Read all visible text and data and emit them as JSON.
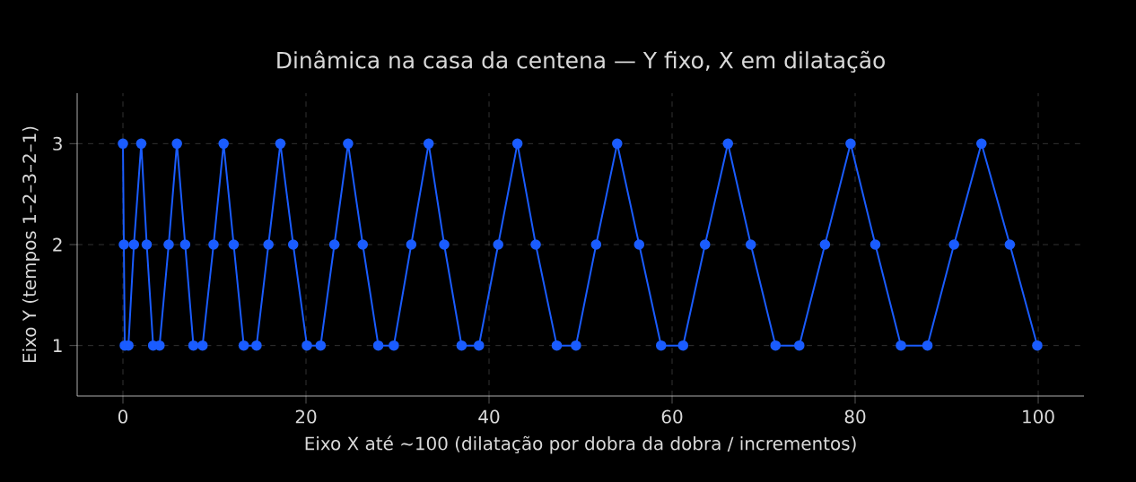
{
  "chart_data": {
    "type": "line",
    "title": "Dinâmica na casa da centena — Y fixo, X em dilatação",
    "xlabel": "Eixo X até ~100 (dilatação por dobra da dobra / incrementos)",
    "ylabel": "Eixo Y (tempos 1–2–3–2–1)",
    "series": [
      {
        "color": "#1a5cff",
        "x": [
          0,
          0.1,
          0.2,
          0.6,
          1.2,
          2,
          2.6,
          3.3,
          4,
          5,
          5.9,
          6.8,
          7.7,
          8.7,
          9.9,
          11,
          12.1,
          13.2,
          14.6,
          15.9,
          17.2,
          18.6,
          20.1,
          21.6,
          23.1,
          24.6,
          26.2,
          27.9,
          29.6,
          31.5,
          33.4,
          35.1,
          37,
          38.9,
          41,
          43.1,
          45.1,
          47.4,
          49.5,
          51.7,
          54,
          56.4,
          58.8,
          61.2,
          63.6,
          66.1,
          68.6,
          71.3,
          73.9,
          76.7,
          79.5,
          82.2,
          85,
          87.9,
          90.8,
          93.8,
          96.9,
          99.9
        ],
        "values": [
          3,
          2,
          1,
          1,
          2,
          3,
          2,
          1,
          1,
          2,
          3,
          2,
          1,
          1,
          2,
          3,
          2,
          1,
          1,
          2,
          3,
          2,
          1,
          1,
          2,
          3,
          2,
          1,
          1,
          2,
          3,
          2,
          1,
          1,
          2,
          3,
          2,
          1,
          1,
          2,
          3,
          2,
          1,
          1,
          2,
          3,
          2,
          1,
          1,
          2,
          3,
          2,
          1,
          1,
          2,
          3,
          2,
          1
        ]
      }
    ],
    "xlim": [
      -5,
      105
    ],
    "ylim": [
      0.5,
      3.5
    ],
    "xticks": [
      0,
      20,
      40,
      60,
      80,
      100
    ],
    "yticks": [
      1,
      2,
      3
    ],
    "grid": true,
    "marker": "circle",
    "line_style": "solid"
  }
}
